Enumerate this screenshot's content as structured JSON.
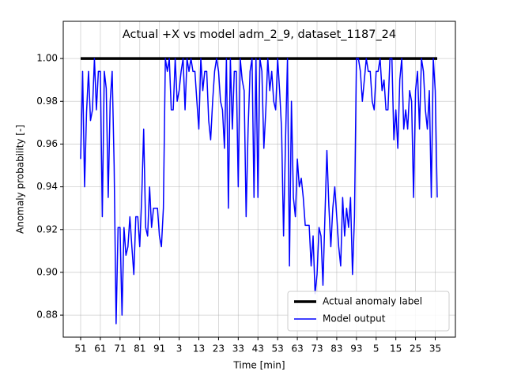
{
  "chart_data": {
    "type": "line",
    "title": "Actual +X vs model adm_2_9, dataset_1187_24",
    "xlabel": "Time [min]",
    "ylabel": "Anomaly probability [-]",
    "categories": [
      "51",
      null,
      null,
      null,
      null,
      null,
      null,
      null,
      null,
      null,
      "61",
      null,
      null,
      null,
      null,
      null,
      null,
      null,
      null,
      null,
      "71",
      null,
      null,
      null,
      null,
      null,
      null,
      null,
      null,
      null,
      "81",
      null,
      null,
      null,
      null,
      null,
      null,
      null,
      null,
      null,
      "91",
      null,
      null,
      null,
      null,
      null,
      null,
      null,
      null,
      null,
      "3",
      null,
      null,
      null,
      null,
      null,
      null,
      null,
      null,
      null,
      "13",
      null,
      null,
      null,
      null,
      null,
      null,
      null,
      null,
      null,
      "23",
      null,
      null,
      null,
      null,
      null,
      null,
      null,
      null,
      null,
      "33",
      null,
      null,
      null,
      null,
      null,
      null,
      null,
      null,
      null,
      "43",
      null,
      null,
      null,
      null,
      null,
      null,
      null,
      null,
      null,
      "53",
      null,
      null,
      null,
      null,
      null,
      null,
      null,
      null,
      null,
      "63",
      null,
      null,
      null,
      null,
      null,
      null,
      null,
      null,
      null,
      "73",
      null,
      null,
      null,
      null,
      null,
      null,
      null,
      null,
      null,
      "83",
      null,
      null,
      null,
      null,
      null,
      null,
      null,
      null,
      null,
      "93",
      null,
      null,
      null,
      null,
      null,
      null,
      null,
      null,
      null,
      "5",
      null,
      null,
      null,
      null,
      null,
      null,
      null,
      null,
      null,
      "15",
      null,
      null,
      null,
      null,
      null,
      null,
      null,
      null,
      null,
      "25",
      null,
      null,
      null,
      null,
      null,
      null,
      null,
      null,
      null,
      "35",
      null
    ],
    "series": [
      {
        "name": "Actual anomaly label",
        "color": "#000000",
        "width": 3.5,
        "values": [
          1,
          1,
          1,
          1,
          1,
          1,
          1,
          1,
          1,
          1,
          1,
          1,
          1,
          1,
          1,
          1,
          1,
          1,
          1,
          1,
          1,
          1,
          1,
          1,
          1,
          1,
          1,
          1,
          1,
          1,
          1,
          1,
          1,
          1,
          1,
          1,
          1,
          1,
          1,
          1,
          1,
          1,
          1,
          1,
          1,
          1,
          1,
          1,
          1,
          1,
          1,
          1,
          1,
          1,
          1,
          1,
          1,
          1,
          1,
          1,
          1,
          1,
          1,
          1,
          1,
          1,
          1,
          1,
          1,
          1,
          1,
          1,
          1,
          1,
          1,
          1,
          1,
          1,
          1,
          1,
          1,
          1,
          1,
          1,
          1,
          1,
          1,
          1,
          1,
          1,
          1,
          1,
          1,
          1,
          1,
          1,
          1,
          1,
          1,
          1,
          1,
          1,
          1,
          1,
          1,
          1,
          1,
          1,
          1,
          1,
          1,
          1,
          1,
          1,
          1,
          1,
          1,
          1,
          1,
          1,
          1,
          1,
          1,
          1,
          1,
          1,
          1,
          1,
          1,
          1,
          1,
          1,
          1,
          1,
          1,
          1,
          1,
          1,
          1,
          1,
          1,
          1,
          1,
          1,
          1,
          1,
          1,
          1,
          1,
          1,
          1,
          1,
          1,
          1,
          1,
          1,
          1,
          1,
          1,
          1,
          1,
          1,
          1,
          1,
          1,
          1,
          1,
          1,
          1,
          1,
          1,
          1,
          1,
          1,
          1,
          1,
          1,
          1,
          1,
          1,
          1,
          1
        ]
      },
      {
        "name": "Model output",
        "color": "#0000ff",
        "width": 1.5,
        "values": [
          0.953,
          0.994,
          0.94,
          0.975,
          0.994,
          0.971,
          0.976,
          1.0,
          0.976,
          0.994,
          0.994,
          0.926,
          0.994,
          0.986,
          0.935,
          0.98,
          0.994,
          0.95,
          0.876,
          0.921,
          0.921,
          0.88,
          0.921,
          0.908,
          0.912,
          0.926,
          0.912,
          0.899,
          0.926,
          0.926,
          0.912,
          0.935,
          0.967,
          0.921,
          0.917,
          0.94,
          0.921,
          0.93,
          0.93,
          0.93,
          0.917,
          0.912,
          0.93,
          1.0,
          0.994,
          1.0,
          0.976,
          0.976,
          1.0,
          0.98,
          0.985,
          0.994,
          1.0,
          0.976,
          1.0,
          0.994,
          1.0,
          0.994,
          0.994,
          0.98,
          0.967,
          1.0,
          0.985,
          0.994,
          0.994,
          0.971,
          0.962,
          0.98,
          0.994,
          1.0,
          0.994,
          0.98,
          0.976,
          0.958,
          1.0,
          0.93,
          1.0,
          0.967,
          0.994,
          0.994,
          0.94,
          1.0,
          0.99,
          0.985,
          0.926,
          0.967,
          0.994,
          1.0,
          0.935,
          1.0,
          0.935,
          1.0,
          0.994,
          0.958,
          0.976,
          1.0,
          0.985,
          0.994,
          0.98,
          0.976,
          1.0,
          0.985,
          0.967,
          0.917,
          0.962,
          1.0,
          0.903,
          0.98,
          0.935,
          0.926,
          0.953,
          0.94,
          0.944,
          0.935,
          0.922,
          0.922,
          0.922,
          0.903,
          0.917,
          0.89,
          0.899,
          0.921,
          0.917,
          0.894,
          0.926,
          0.957,
          0.931,
          0.912,
          0.93,
          0.94,
          0.926,
          0.912,
          0.903,
          0.935,
          0.917,
          0.93,
          0.921,
          0.935,
          0.899,
          0.926,
          1.0,
          1.0,
          0.994,
          0.98,
          0.99,
          1.0,
          0.994,
          0.994,
          0.98,
          0.976,
          0.994,
          0.994,
          1.0,
          0.985,
          0.99,
          0.976,
          0.976,
          1.0,
          1.0,
          0.962,
          0.976,
          0.958,
          0.99,
          1.0,
          0.967,
          0.976,
          0.967,
          0.985,
          0.98,
          0.935,
          0.985,
          0.994,
          0.967,
          1.0,
          0.994,
          0.976,
          0.967,
          0.985,
          0.935,
          1.0,
          0.985,
          0.935
        ]
      }
    ],
    "ylim": [
      0.8697,
      1.0174
    ],
    "yticks": [
      0.88,
      {
        "value": 0.9,
        "label": "0.90"
      },
      0.92,
      0.94,
      0.96,
      0.98,
      {
        "value": 1,
        "label": "1.00"
      }
    ],
    "grid": true,
    "legend": "lower right"
  }
}
